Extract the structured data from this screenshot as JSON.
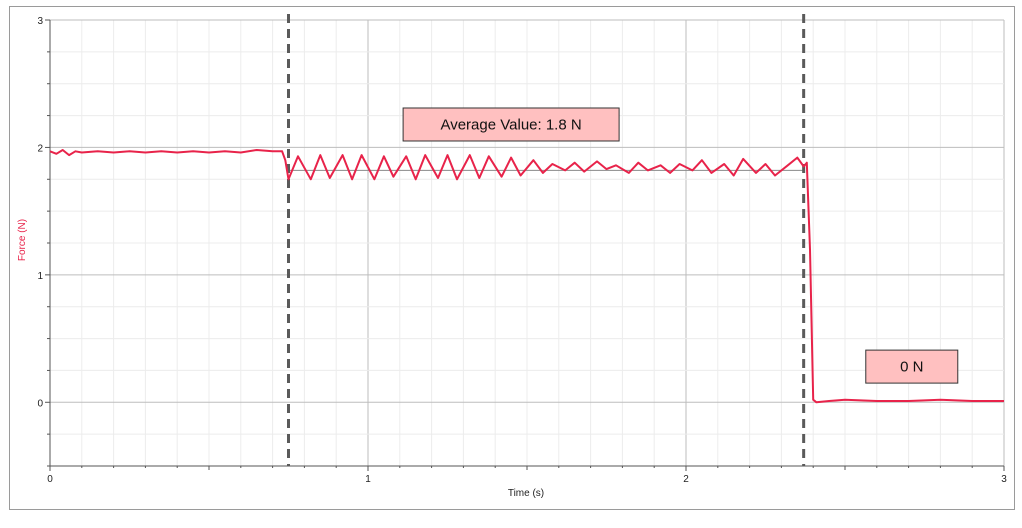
{
  "chart_data": {
    "type": "line",
    "xlabel": "Time (s)",
    "ylabel": "Force (N)",
    "xlim": [
      0,
      3
    ],
    "ylim": [
      -0.5,
      3
    ],
    "x_ticks": [
      "0",
      "1",
      "2",
      "3"
    ],
    "y_ticks": [
      "0",
      "1",
      "2",
      "3"
    ],
    "grid": true,
    "series": [
      {
        "color": "#e8234a",
        "x": [
          0.0,
          0.02,
          0.04,
          0.06,
          0.08,
          0.1,
          0.15,
          0.2,
          0.25,
          0.3,
          0.35,
          0.4,
          0.45,
          0.5,
          0.55,
          0.6,
          0.65,
          0.7,
          0.73,
          0.74,
          0.75,
          0.78,
          0.82,
          0.85,
          0.88,
          0.92,
          0.95,
          0.98,
          1.02,
          1.05,
          1.08,
          1.12,
          1.15,
          1.18,
          1.22,
          1.25,
          1.28,
          1.32,
          1.35,
          1.38,
          1.42,
          1.45,
          1.48,
          1.52,
          1.55,
          1.58,
          1.62,
          1.65,
          1.68,
          1.72,
          1.75,
          1.78,
          1.82,
          1.85,
          1.88,
          1.92,
          1.95,
          1.98,
          2.02,
          2.05,
          2.08,
          2.12,
          2.15,
          2.18,
          2.22,
          2.25,
          2.28,
          2.32,
          2.35,
          2.37,
          2.38,
          2.39,
          2.4,
          2.41,
          2.45,
          2.5,
          2.6,
          2.7,
          2.8,
          2.9,
          3.0
        ],
        "y": [
          1.97,
          1.95,
          1.98,
          1.94,
          1.97,
          1.96,
          1.97,
          1.96,
          1.97,
          1.96,
          1.97,
          1.96,
          1.97,
          1.96,
          1.97,
          1.96,
          1.98,
          1.97,
          1.97,
          1.9,
          1.75,
          1.93,
          1.75,
          1.94,
          1.76,
          1.94,
          1.75,
          1.94,
          1.75,
          1.93,
          1.77,
          1.93,
          1.75,
          1.94,
          1.76,
          1.94,
          1.75,
          1.94,
          1.76,
          1.93,
          1.77,
          1.92,
          1.78,
          1.9,
          1.8,
          1.87,
          1.82,
          1.88,
          1.81,
          1.89,
          1.83,
          1.86,
          1.8,
          1.88,
          1.82,
          1.86,
          1.8,
          1.87,
          1.82,
          1.9,
          1.8,
          1.87,
          1.78,
          1.91,
          1.8,
          1.87,
          1.78,
          1.86,
          1.92,
          1.85,
          1.88,
          1.2,
          0.02,
          0.0,
          0.01,
          0.02,
          0.01,
          0.01,
          0.02,
          0.01,
          0.01
        ]
      }
    ],
    "vertical_markers": [
      0.75,
      2.37
    ],
    "reference_lines": [
      1.82
    ],
    "annotations": [
      {
        "text": "Average Value: 1.8 N",
        "x": 1.45,
        "y": 2.18,
        "fill": "#ffc0c0"
      },
      {
        "text": "0 N",
        "x": 2.71,
        "y": 0.28,
        "fill": "#ffc0c0"
      }
    ]
  }
}
